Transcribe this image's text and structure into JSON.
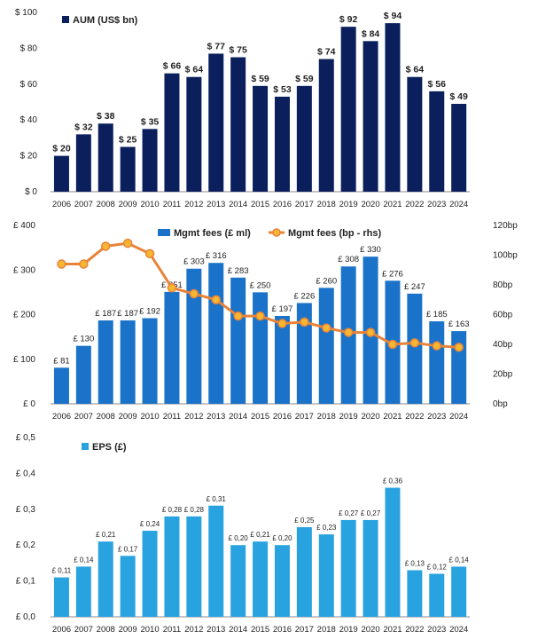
{
  "colors": {
    "aum_bar": "#0a1f5c",
    "fees_bar": "#1a73c8",
    "fees_line": "#e8833a",
    "fees_marker": "#f5b731",
    "eps_bar": "#29a3e0",
    "axis_text": "#222222",
    "axis_line": "#888888"
  },
  "chart_data": [
    {
      "type": "bar",
      "legend": "AUM (US$ bn)",
      "legend_position": "top-left",
      "categories": [
        "2006",
        "2007",
        "2008",
        "2009",
        "2010",
        "2011",
        "2012",
        "2013",
        "2014",
        "2015",
        "2016",
        "2017",
        "2018",
        "2019",
        "2020",
        "2021",
        "2022",
        "2023",
        "2024"
      ],
      "values": [
        20,
        32,
        38,
        25,
        35,
        66,
        64,
        77,
        75,
        59,
        53,
        59,
        74,
        92,
        84,
        94,
        64,
        56,
        49
      ],
      "value_labels": [
        "$ 20",
        "$ 32",
        "$ 38",
        "$ 25",
        "$ 35",
        "$ 66",
        "$ 64",
        "$ 77",
        "$ 75",
        "$ 59",
        "$ 53",
        "$ 59",
        "$ 74",
        "$ 92",
        "$ 84",
        "$ 94",
        "$ 64",
        "$ 56",
        "$ 49"
      ],
      "ylim": [
        0,
        100
      ],
      "yticks": [
        0,
        20,
        40,
        60,
        80,
        100
      ],
      "ytick_labels": [
        "$ 0",
        "$ 20",
        "$ 40",
        "$ 60",
        "$ 80",
        "$ 100"
      ],
      "grid": false
    },
    {
      "type": "bar+line",
      "legend": [
        "Mgmt fees (£ ml)",
        "Mgmt fees (bp - rhs)"
      ],
      "legend_position": "top-center",
      "categories": [
        "2006",
        "2007",
        "2008",
        "2009",
        "2010",
        "2011",
        "2012",
        "2013",
        "2014",
        "2015",
        "2016",
        "2017",
        "2018",
        "2019",
        "2020",
        "2021",
        "2022",
        "2023",
        "2024"
      ],
      "series": [
        {
          "name": "Mgmt fees (£ ml)",
          "type": "bar",
          "axis": "left",
          "values": [
            81,
            130,
            187,
            187,
            192,
            251,
            303,
            316,
            283,
            250,
            197,
            226,
            260,
            308,
            330,
            276,
            247,
            185,
            163
          ],
          "value_labels": [
            "£ 81",
            "£ 130",
            "£ 187",
            "£ 187",
            "£ 192",
            "£ 251",
            "£ 303",
            "£ 316",
            "£ 283",
            "£ 250",
            "£ 197",
            "£ 226",
            "£ 260",
            "£ 308",
            "£ 330",
            "£ 276",
            "£ 247",
            "£ 185",
            "£ 163"
          ]
        },
        {
          "name": "Mgmt fees (bp - rhs)",
          "type": "line",
          "axis": "right",
          "values": [
            94,
            94,
            106,
            108,
            101,
            78,
            74,
            70,
            59,
            59,
            54,
            55,
            51,
            48,
            48,
            40,
            41,
            39,
            38
          ]
        }
      ],
      "ylim_left": [
        0,
        400
      ],
      "yticks_left": [
        0,
        100,
        200,
        300,
        400
      ],
      "ytick_labels_left": [
        "£ 0",
        "£ 100",
        "£ 200",
        "£ 300",
        "£ 400"
      ],
      "ylim_right": [
        0,
        120
      ],
      "yticks_right": [
        0,
        20,
        40,
        60,
        80,
        100,
        120
      ],
      "ytick_labels_right": [
        "0bp",
        "20bp",
        "40bp",
        "60bp",
        "80bp",
        "100bp",
        "120bp"
      ],
      "grid": false
    },
    {
      "type": "bar",
      "legend": "EPS (£)",
      "legend_position": "top-left",
      "categories": [
        "2006",
        "2007",
        "2008",
        "2009",
        "2010",
        "2011",
        "2012",
        "2013",
        "2014",
        "2015",
        "2016",
        "2017",
        "2018",
        "2019",
        "2020",
        "2021",
        "2022",
        "2023",
        "2024"
      ],
      "values": [
        0.11,
        0.14,
        0.21,
        0.17,
        0.24,
        0.28,
        0.28,
        0.31,
        0.2,
        0.21,
        0.2,
        0.25,
        0.23,
        0.27,
        0.27,
        0.36,
        0.13,
        0.12,
        0.14
      ],
      "value_labels": [
        "£ 0,11",
        "£ 0,14",
        "£ 0,21",
        "£ 0,17",
        "£ 0,24",
        "£ 0,28",
        "£ 0,28",
        "£ 0,31",
        "£ 0,20",
        "£ 0,21",
        "£ 0,20",
        "£ 0,25",
        "£ 0,23",
        "£ 0,27",
        "£ 0,27",
        "£ 0,36",
        "£ 0,13",
        "£ 0,12",
        "£ 0,14"
      ],
      "ylim": [
        0,
        0.5
      ],
      "yticks": [
        0,
        0.1,
        0.2,
        0.3,
        0.4,
        0.5
      ],
      "ytick_labels": [
        "£ 0,0",
        "£ 0,1",
        "£ 0,2",
        "£ 0,3",
        "£ 0,4",
        "£ 0,5"
      ],
      "grid": false
    }
  ]
}
